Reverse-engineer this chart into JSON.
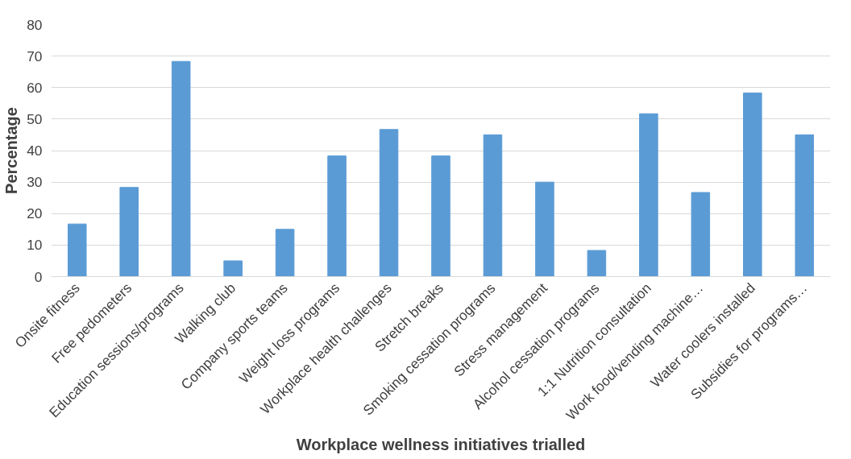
{
  "chart_data": {
    "type": "bar",
    "xlabel": "Workplace wellness initiatives trialled",
    "ylabel": "Percentage",
    "categories": [
      "Onsite fitness",
      "Free pedometers",
      "Education sessions/programs",
      "Walking club",
      "Company sports teams",
      "Weight loss programs",
      "Workplace health challenges",
      "Stretch breaks",
      "Smoking cessation programs",
      "Stress management",
      "Alcohol cessation programs",
      "1:1 Nutrition consultation",
      "Work food/vending machine…",
      "Water coolers installed",
      "Subsidies for programs…"
    ],
    "values": [
      16.7,
      28.3,
      68.3,
      5,
      15,
      38.3,
      46.7,
      38.3,
      45,
      30,
      8.3,
      51.7,
      26.7,
      58.3,
      45
    ],
    "color": "#5b9bd5",
    "ylim": [
      0,
      80
    ],
    "yticks": [
      0,
      10,
      20,
      30,
      40,
      50,
      60,
      70,
      80
    ],
    "grid": "y"
  }
}
